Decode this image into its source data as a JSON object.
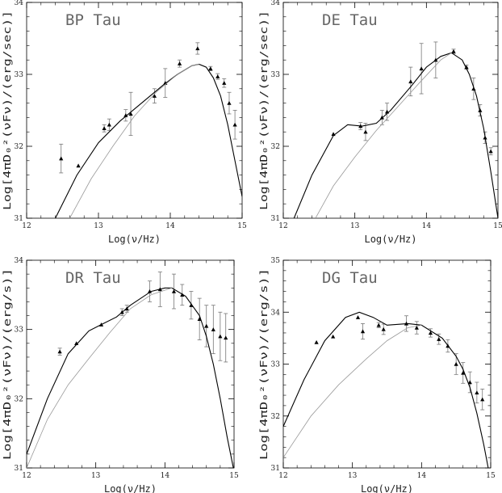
{
  "chart_data": [
    {
      "type": "scatter",
      "title": "BP Tau",
      "xlabel": "Log(ν/Hz)",
      "ylabel": "Log[4πD₀²(νFν)/(erg/sec)]",
      "xlim": [
        12,
        15
      ],
      "ylim": [
        31,
        34
      ],
      "xticks": [
        "12",
        "13",
        "14",
        "15"
      ],
      "yticks": [
        "31",
        "32",
        "33",
        "34"
      ],
      "series": [
        {
          "kind": "points",
          "x": [
            12.48,
            12.72,
            13.08,
            13.15,
            13.38,
            13.45,
            13.78,
            13.93,
            14.13,
            14.38,
            14.56,
            14.66,
            14.75,
            14.82,
            14.9
          ],
          "y": [
            31.83,
            31.73,
            32.25,
            32.3,
            32.43,
            32.45,
            32.7,
            32.88,
            33.15,
            33.36,
            33.08,
            32.97,
            32.88,
            32.6,
            32.3
          ],
          "yerr": [
            0.2,
            0,
            0.05,
            0.08,
            0.08,
            0.3,
            0.1,
            0.2,
            0.05,
            0.08,
            0.03,
            0.04,
            0.06,
            0.15,
            0.2
          ]
        },
        {
          "kind": "model",
          "x": [
            12.4,
            12.7,
            13.0,
            13.3,
            13.6,
            13.9,
            14.1,
            14.3,
            14.4,
            14.5,
            14.6,
            14.7,
            14.8,
            14.9,
            15.0
          ],
          "y": [
            31.0,
            31.6,
            32.05,
            32.35,
            32.6,
            32.85,
            33.0,
            33.12,
            33.14,
            33.1,
            32.95,
            32.7,
            32.3,
            31.8,
            31.3
          ]
        },
        {
          "kind": "model",
          "x": [
            12.6,
            12.9,
            13.2,
            13.5,
            13.8,
            14.1,
            14.3,
            14.4
          ],
          "y": [
            31.0,
            31.55,
            32.0,
            32.42,
            32.75,
            33.0,
            33.12,
            33.14
          ]
        }
      ]
    },
    {
      "type": "scatter",
      "title": "DE Tau",
      "xlabel": "Log(ν/Hz)",
      "ylabel": "Log[4πD₀²(νFν)/(erg/sec)]",
      "xlim": [
        12,
        15
      ],
      "ylim": [
        31,
        34
      ],
      "xticks": [
        "12",
        "13",
        "14",
        "15"
      ],
      "yticks": [
        "31",
        "32",
        "33",
        "34"
      ],
      "series": [
        {
          "kind": "points",
          "x": [
            12.7,
            13.08,
            13.15,
            13.38,
            13.45,
            13.78,
            13.93,
            14.13,
            14.38,
            14.56,
            14.66,
            14.75,
            14.82,
            14.9
          ],
          "y": [
            32.17,
            32.28,
            32.2,
            32.4,
            32.48,
            32.9,
            33.08,
            33.2,
            33.32,
            33.1,
            32.8,
            32.5,
            32.12,
            31.93
          ],
          "yerr": [
            0,
            0.05,
            0.12,
            0.1,
            0.12,
            0.2,
            0.35,
            0.25,
            0.03,
            0.03,
            0.15,
            0.08,
            0.08,
            0.05
          ]
        },
        {
          "kind": "model",
          "x": [
            12.15,
            12.4,
            12.7,
            12.9,
            13.1,
            13.3,
            13.5,
            13.8,
            14.0,
            14.2,
            14.35,
            14.5,
            14.6,
            14.7,
            14.8,
            14.9,
            15.0
          ],
          "y": [
            31.0,
            31.6,
            32.15,
            32.3,
            32.28,
            32.32,
            32.5,
            32.85,
            33.1,
            33.25,
            33.3,
            33.2,
            33.0,
            32.7,
            32.25,
            31.65,
            31.0
          ]
        },
        {
          "kind": "model",
          "x": [
            12.45,
            12.7,
            13.0,
            13.3,
            13.6,
            13.9,
            14.2,
            14.35
          ],
          "y": [
            31.0,
            31.45,
            31.85,
            32.22,
            32.55,
            32.88,
            33.2,
            33.3
          ]
        }
      ]
    },
    {
      "type": "scatter",
      "title": "DR Tau",
      "xlabel": "Log(ν/Hz)",
      "ylabel": "Log[4πD₀²(νFν)/(erg/s)]",
      "xlim": [
        12,
        15
      ],
      "ylim": [
        31,
        34
      ],
      "xticks": [
        "12",
        "13",
        "14",
        "15"
      ],
      "yticks": [
        "31",
        "32",
        "33",
        "34"
      ],
      "series": [
        {
          "kind": "points",
          "x": [
            12.48,
            12.72,
            13.08,
            13.38,
            13.45,
            13.78,
            13.93,
            14.13,
            14.25,
            14.38,
            14.5,
            14.6,
            14.7,
            14.8,
            14.88
          ],
          "y": [
            32.68,
            32.8,
            33.07,
            33.25,
            33.3,
            33.55,
            33.58,
            33.55,
            33.5,
            33.35,
            33.15,
            33.05,
            33.0,
            32.9,
            32.88
          ],
          "yerr": [
            0.05,
            0,
            0,
            0.05,
            0.05,
            0.15,
            0.25,
            0.25,
            0.15,
            0.2,
            0.3,
            0.3,
            0.35,
            0.35,
            0.35
          ]
        },
        {
          "kind": "model",
          "x": [
            12.0,
            12.3,
            12.6,
            12.9,
            13.1,
            13.3,
            13.5,
            13.8,
            14.0,
            14.1,
            14.3,
            14.5,
            14.6,
            14.7,
            14.8,
            14.9,
            15.0
          ],
          "y": [
            31.2,
            32.0,
            32.65,
            32.98,
            33.08,
            33.18,
            33.35,
            33.55,
            33.6,
            33.6,
            33.48,
            33.2,
            32.9,
            32.5,
            32.0,
            31.45,
            30.95
          ]
        },
        {
          "kind": "model",
          "x": [
            12.0,
            12.3,
            12.6,
            12.9,
            13.2,
            13.5,
            13.8,
            14.1
          ],
          "y": [
            31.0,
            31.7,
            32.2,
            32.58,
            32.95,
            33.3,
            33.5,
            33.6
          ]
        }
      ]
    },
    {
      "type": "scatter",
      "title": "DG Tau",
      "xlabel": "Log(ν/Hz)",
      "ylabel": "Log[4πD₀²(νFν)/(erg/s)]",
      "xlim": [
        12,
        15
      ],
      "ylim": [
        31,
        35
      ],
      "xticks": [
        "12",
        "13",
        "14",
        "15"
      ],
      "yticks": [
        "31",
        "32",
        "33",
        "34",
        "35"
      ],
      "series": [
        {
          "kind": "points",
          "x": [
            12.48,
            12.72,
            13.08,
            13.15,
            13.38,
            13.45,
            13.78,
            13.93,
            14.13,
            14.25,
            14.38,
            14.5,
            14.6,
            14.7,
            14.8,
            14.88
          ],
          "y": [
            33.42,
            33.53,
            33.9,
            33.63,
            33.75,
            33.67,
            33.78,
            33.7,
            33.6,
            33.48,
            33.35,
            33.0,
            32.83,
            32.65,
            32.45,
            32.32
          ],
          "yerr": [
            0,
            0,
            0,
            0.15,
            0.05,
            0.1,
            0.15,
            0.12,
            0.08,
            0.1,
            0.12,
            0.2,
            0.2,
            0.2,
            0.2,
            0.2
          ]
        },
        {
          "kind": "model",
          "x": [
            12.0,
            12.3,
            12.6,
            12.9,
            13.1,
            13.3,
            13.5,
            13.8,
            14.0,
            14.3,
            14.5,
            14.6,
            14.7,
            14.8,
            14.9,
            15.0
          ],
          "y": [
            31.8,
            32.7,
            33.45,
            33.9,
            34.0,
            33.9,
            33.75,
            33.78,
            33.75,
            33.5,
            33.15,
            32.9,
            32.55,
            32.05,
            31.45,
            30.75
          ]
        },
        {
          "kind": "model",
          "x": [
            12.0,
            12.4,
            12.8,
            13.2,
            13.5,
            13.8,
            14.0
          ],
          "y": [
            31.2,
            32.0,
            32.6,
            33.1,
            33.45,
            33.7,
            33.75
          ]
        }
      ]
    }
  ]
}
